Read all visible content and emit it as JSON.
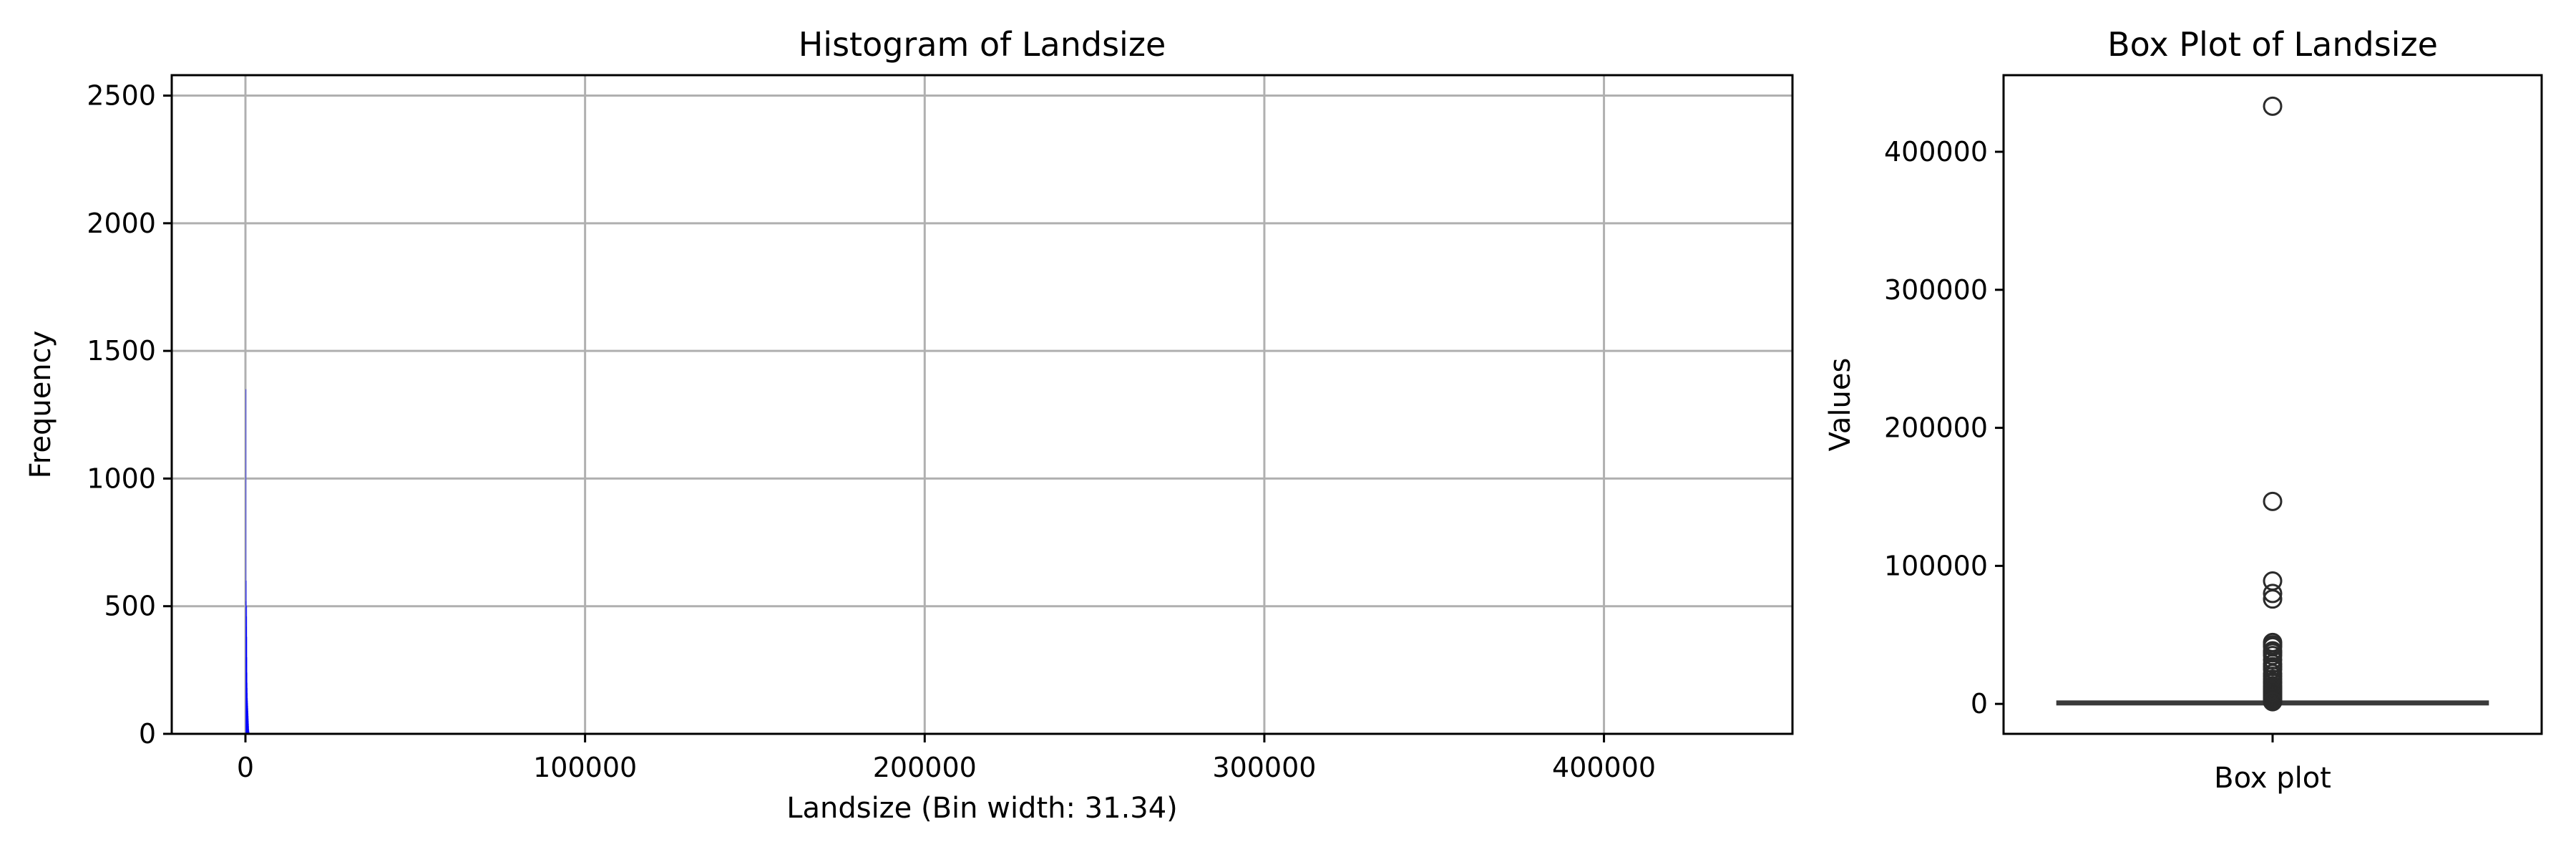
{
  "chart_data": [
    {
      "type": "histogram",
      "title": "Histogram of Landsize",
      "xlabel": "Landsize (Bin width: 31.34)",
      "ylabel": "Frequency",
      "xlim": [
        -21700,
        455500
      ],
      "ylim": [
        0,
        2580
      ],
      "x_ticks": [
        0,
        100000,
        200000,
        300000,
        400000
      ],
      "y_ticks": [
        0,
        500,
        1000,
        1500,
        2000,
        2500
      ],
      "grid": true,
      "bin_width": 31.34,
      "bar_color": "#0000ff",
      "bins": [
        {
          "x": 0,
          "value": 1350
        },
        {
          "x": 31.34,
          "value": 520
        },
        {
          "x": 62.68,
          "value": 300
        },
        {
          "x": 94.02,
          "value": 600
        },
        {
          "x": 125.36,
          "value": 340
        },
        {
          "x": 156.7,
          "value": 420
        },
        {
          "x": 188.04,
          "value": 460
        },
        {
          "x": 219.38,
          "value": 500
        },
        {
          "x": 250.72,
          "value": 380
        },
        {
          "x": 282.06,
          "value": 300
        },
        {
          "x": 313.4,
          "value": 240
        },
        {
          "x": 344.74,
          "value": 200
        },
        {
          "x": 376.08,
          "value": 180
        },
        {
          "x": 407.42,
          "value": 160
        },
        {
          "x": 438.76,
          "value": 140
        },
        {
          "x": 470.1,
          "value": 130
        },
        {
          "x": 501.44,
          "value": 120
        },
        {
          "x": 532.78,
          "value": 110
        },
        {
          "x": 564.12,
          "value": 100
        },
        {
          "x": 595.46,
          "value": 90
        },
        {
          "x": 626.8,
          "value": 80
        },
        {
          "x": 658.14,
          "value": 70
        },
        {
          "x": 689.48,
          "value": 60
        },
        {
          "x": 720.82,
          "value": 50
        },
        {
          "x": 752.16,
          "value": 40
        },
        {
          "x": 783.5,
          "value": 30
        },
        {
          "x": 814.84,
          "value": 20
        },
        {
          "x": 846.18,
          "value": 15
        },
        {
          "x": 877.52,
          "value": 10
        },
        {
          "x": 908.86,
          "value": 8
        },
        {
          "x": 1000,
          "value": 5
        },
        {
          "x": 1500,
          "value": 3
        },
        {
          "x": 2000,
          "value": 2
        },
        {
          "x": 3000,
          "value": 1
        }
      ]
    },
    {
      "type": "box",
      "title": "Box Plot of Landsize",
      "xlabel": "Box plot",
      "ylabel": "Values",
      "ylim": [
        -21700,
        455500
      ],
      "y_ticks": [
        0,
        100000,
        200000,
        300000,
        400000
      ],
      "category": "Box plot",
      "whisker_low": 0,
      "q1": 177,
      "median": 440,
      "q3": 651,
      "whisker_high": 1360,
      "outliers": [
        433014,
        146699,
        89030,
        80000,
        76000,
        44500,
        42800,
        41400,
        38490,
        37000,
        35000,
        32000,
        29000,
        27000,
        25000,
        22000,
        20000,
        18000,
        16000,
        15000,
        13000,
        12000,
        11000,
        10000,
        9000,
        8000,
        7000,
        6500,
        6000,
        5500,
        5000,
        4500,
        4000,
        3500,
        3000,
        2600,
        2300,
        2000,
        1800,
        1600
      ]
    }
  ]
}
